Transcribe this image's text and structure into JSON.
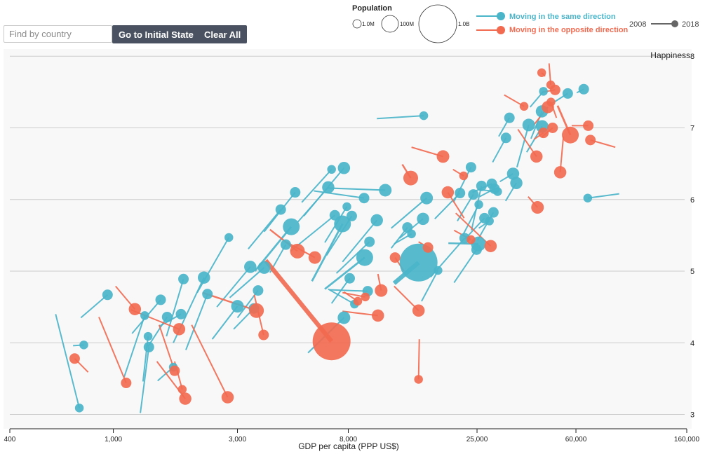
{
  "controls": {
    "search_placeholder": "Find by country",
    "initial_label": "Go to Initial State",
    "clear_label": "Clear All"
  },
  "legend": {
    "population_title": "Population",
    "population_sizes": [
      "1.0M",
      "100M",
      "1.0B"
    ],
    "same_label": "Moving in the same direction",
    "opposite_label": "Moving in the opposite direction",
    "year_start": "2008",
    "year_end": "2018"
  },
  "colors": {
    "same": "#4ab4c9",
    "opposite": "#f26a50",
    "plot_bg": "#f8f8f8",
    "grid": "#cccccc",
    "slider": "#666666"
  },
  "chart_data": {
    "type": "scatter",
    "xlabel": "GDP per capita (PPP US$)",
    "ylabel": "Happiness",
    "x_scale": "log",
    "xlim": [
      400,
      160000
    ],
    "ylim": [
      2.8,
      8.1
    ],
    "x_ticks": [
      400,
      1000,
      3000,
      8000,
      25000,
      60000,
      160000
    ],
    "x_tick_labels": [
      "400",
      "1,000",
      "3,000",
      "8,000",
      "25,000",
      "60,000",
      "160,000"
    ],
    "y_ticks": [
      3,
      4,
      5,
      6,
      7,
      8
    ],
    "legend_position": "top",
    "series": [
      {
        "name": "Moving in the same direction",
        "points": [
          [
            740,
            3.09,
            600,
            4.4,
            1.5
          ],
          [
            770,
            3.97,
            700,
            3.96,
            1.5
          ],
          [
            950,
            4.67,
            750,
            4.35,
            2
          ],
          [
            1320,
            4.38,
            1100,
            3.52,
            1.5
          ],
          [
            1360,
            4.09,
            1300,
            3.46,
            1.5
          ],
          [
            1370,
            3.94,
            1270,
            3.02,
            2
          ],
          [
            1520,
            4.6,
            1180,
            4.13,
            2
          ],
          [
            1610,
            4.36,
            1360,
            3.95,
            2
          ],
          [
            1700,
            3.66,
            1480,
            3.47,
            1.5
          ],
          [
            1820,
            4.4,
            1500,
            4.23,
            2
          ],
          [
            1860,
            4.89,
            1600,
            4.09,
            2
          ],
          [
            2230,
            4.91,
            1700,
            4.0,
            2.5
          ],
          [
            2300,
            4.68,
            1900,
            3.9,
            2
          ],
          [
            2780,
            5.47,
            2100,
            4.7,
            1.5
          ],
          [
            3000,
            4.51,
            2400,
            4.05,
            3
          ],
          [
            3360,
            5.06,
            2500,
            4.5,
            2.5
          ],
          [
            3800,
            5.05,
            2800,
            4.63,
            3
          ],
          [
            3600,
            4.73,
            3000,
            4.35,
            2
          ],
          [
            3470,
            4.48,
            2900,
            4.19,
            2
          ],
          [
            4400,
            5.86,
            3300,
            5.31,
            2
          ],
          [
            4830,
            5.62,
            3500,
            5.0,
            4
          ],
          [
            5000,
            6.1,
            3800,
            5.55,
            2
          ],
          [
            4600,
            5.37,
            4000,
            4.98,
            2
          ],
          [
            6700,
            6.17,
            5100,
            5.68,
            2.5
          ],
          [
            6900,
            6.42,
            5300,
            5.96,
            1.5
          ],
          [
            7100,
            5.78,
            4800,
            5.28,
            2
          ],
          [
            7600,
            5.66,
            5800,
            4.86,
            4
          ],
          [
            7700,
            6.44,
            5400,
            5.77,
            2.5
          ],
          [
            7900,
            5.9,
            6500,
            5.4,
            1.5
          ],
          [
            8250,
            5.77,
            6600,
            5.22,
            2
          ],
          [
            8100,
            4.9,
            6900,
            4.55,
            2
          ],
          [
            7700,
            4.35,
            5600,
            3.86,
            3
          ],
          [
            8450,
            4.54,
            6700,
            4.75,
            1.5
          ],
          [
            9200,
            6.02,
            5900,
            6.12,
            2
          ],
          [
            9250,
            5.19,
            6500,
            4.75,
            4
          ],
          [
            9650,
            5.41,
            7200,
            4.97,
            2
          ],
          [
            10300,
            5.71,
            7600,
            5.13,
            2.5
          ],
          [
            9500,
            4.72,
            6800,
            4.74,
            2
          ],
          [
            11100,
            6.13,
            6700,
            6.16,
            3
          ],
          [
            14900,
            5.12,
            12000,
            4.83,
            9
          ],
          [
            13500,
            5.61,
            11700,
            5.32,
            2
          ],
          [
            14000,
            5.52,
            12000,
            5.38,
            1.5
          ],
          [
            16000,
            6.02,
            11700,
            5.6,
            3
          ],
          [
            15500,
            5.73,
            12600,
            5.46,
            2.5
          ],
          [
            15600,
            7.17,
            10300,
            7.13,
            1.5
          ],
          [
            17700,
            5.01,
            15300,
            4.58,
            1.5
          ],
          [
            21500,
            6.09,
            17200,
            5.73,
            2
          ],
          [
            22400,
            5.46,
            16600,
            4.92,
            2
          ],
          [
            23700,
            6.45,
            20300,
            5.96,
            2
          ],
          [
            24200,
            6.07,
            21000,
            5.7,
            2
          ],
          [
            25300,
            5.38,
            19400,
            5.39,
            3.5
          ],
          [
            24900,
            5.3,
            20400,
            4.84,
            2
          ],
          [
            25400,
            5.93,
            22100,
            5.51,
            1.5
          ],
          [
            26700,
            5.74,
            22500,
            5.45,
            2
          ],
          [
            26000,
            6.19,
            23800,
            5.57,
            2
          ],
          [
            28900,
            5.82,
            25100,
            5.43,
            2
          ],
          [
            28500,
            6.22,
            24000,
            6.1,
            2
          ],
          [
            29200,
            6.15,
            25600,
            6.04,
            2
          ],
          [
            27900,
            5.7,
            25400,
            5.6,
            1.5
          ],
          [
            30000,
            6.11,
            25100,
            6.14,
            1.5
          ],
          [
            32300,
            6.86,
            28700,
            6.52,
            2
          ],
          [
            33300,
            7.14,
            30300,
            6.88,
            2
          ],
          [
            34400,
            6.36,
            30600,
            6.25,
            2.5
          ],
          [
            35400,
            6.23,
            32200,
            5.98,
            2.5
          ],
          [
            39500,
            7.04,
            35600,
            6.45,
            3
          ],
          [
            44500,
            7.02,
            38800,
            6.66,
            3
          ],
          [
            44400,
            7.23,
            40300,
            6.85,
            2.5
          ],
          [
            45000,
            7.51,
            40000,
            7.29,
            1.5
          ],
          [
            55800,
            7.48,
            48500,
            7.34,
            2
          ],
          [
            64300,
            7.54,
            60400,
            7.49,
            2
          ],
          [
            66600,
            6.02,
            88000,
            6.08,
            1.5
          ]
        ]
      },
      {
        "name": "Moving in the opposite direction",
        "points": [
          [
            710,
            3.78,
            800,
            3.59,
            2
          ],
          [
            1120,
            3.44,
            880,
            4.36,
            2
          ],
          [
            1210,
            4.47,
            1020,
            4.79,
            2.5
          ],
          [
            1720,
            3.61,
            1500,
            4.25,
            2
          ],
          [
            1790,
            4.19,
            1170,
            4.46,
            2.5
          ],
          [
            1840,
            3.35,
            1720,
            3.74,
            1.5
          ],
          [
            1890,
            3.22,
            1470,
            3.74,
            2.5
          ],
          [
            2750,
            3.24,
            2000,
            4.25,
            2.5
          ],
          [
            3550,
            4.45,
            2200,
            4.7,
            3.5
          ],
          [
            3780,
            4.11,
            3480,
            4.67,
            2
          ],
          [
            5100,
            5.28,
            4000,
            5.58,
            3.5
          ],
          [
            5950,
            5.19,
            4600,
            5.41,
            3
          ],
          [
            6900,
            4.02,
            3850,
            5.15,
            9
          ],
          [
            8700,
            4.58,
            7700,
            4.71,
            1.5
          ],
          [
            9300,
            4.64,
            7600,
            4.7,
            1.5
          ],
          [
            10400,
            4.38,
            7600,
            4.44,
            2.5
          ],
          [
            10700,
            4.73,
            10400,
            4.96,
            3
          ],
          [
            12100,
            5.19,
            13100,
            5.0,
            2
          ],
          [
            13900,
            6.3,
            12900,
            6.49,
            3.5
          ],
          [
            14900,
            4.45,
            12000,
            4.79,
            2.5
          ],
          [
            14900,
            3.49,
            15000,
            4.05,
            1.5
          ],
          [
            16200,
            5.33,
            14900,
            5.41,
            2
          ],
          [
            18500,
            6.6,
            14000,
            6.73,
            3
          ],
          [
            19300,
            6.1,
            22300,
            5.74,
            2.5
          ],
          [
            22200,
            6.33,
            20200,
            6.42,
            1.5
          ],
          [
            23700,
            5.44,
            20400,
            5.57,
            1.5
          ],
          [
            28200,
            5.35,
            20700,
            5.81,
            2.5
          ],
          [
            37900,
            7.3,
            31800,
            7.46,
            1.5
          ],
          [
            42300,
            6.6,
            35900,
            6.98,
            2.5
          ],
          [
            42700,
            5.89,
            39300,
            6.04,
            3
          ],
          [
            44300,
            7.77,
            45700,
            7.72,
            1.5
          ],
          [
            45000,
            6.93,
            41400,
            6.84,
            2
          ],
          [
            46800,
            7.29,
            41300,
            7.04,
            2.5
          ],
          [
            48100,
            7.36,
            50500,
            7.14,
            1.5
          ],
          [
            48000,
            7.6,
            47300,
            7.9,
            1.5
          ],
          [
            48800,
            7.0,
            44300,
            6.87,
            2
          ],
          [
            49900,
            7.53,
            44700,
            7.5,
            2
          ],
          [
            52200,
            6.38,
            53700,
            6.88,
            2.5
          ],
          [
            57100,
            6.9,
            51000,
            7.31,
            4
          ],
          [
            66900,
            7.03,
            57800,
            7.03,
            2
          ],
          [
            68200,
            6.83,
            85000,
            6.73,
            2
          ]
        ]
      }
    ]
  }
}
